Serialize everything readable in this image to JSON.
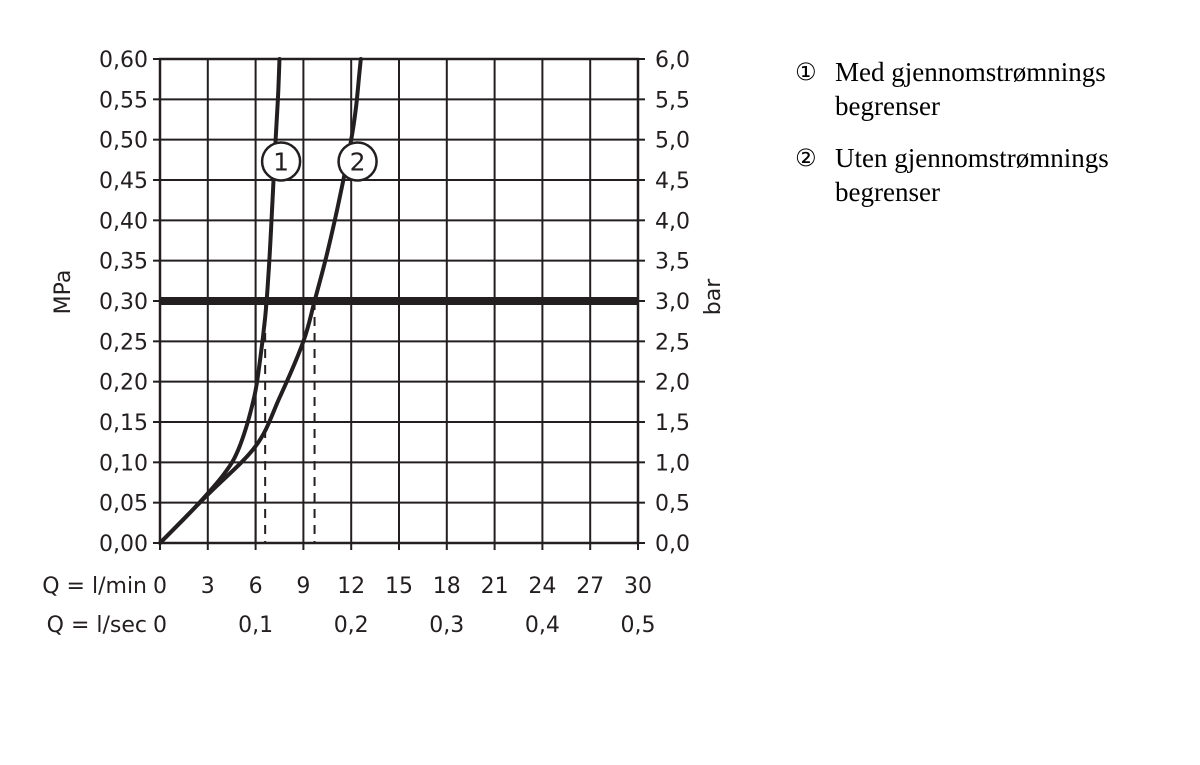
{
  "chart_data": {
    "type": "line",
    "ylabel_left": "MPa",
    "ylabel_right": "bar",
    "x_row1_label": "Q = l/min",
    "x_row2_label": "Q = l/sec",
    "xlim": [
      0,
      30
    ],
    "ylim": [
      0,
      0.6
    ],
    "x_ticks": [
      "0",
      "3",
      "6",
      "9",
      "12",
      "15",
      "18",
      "21",
      "24",
      "27",
      "30"
    ],
    "x_ticks_sec": [
      {
        "q": 0,
        "label": "0"
      },
      {
        "q": 6,
        "label": "0,1"
      },
      {
        "q": 12,
        "label": "0,2"
      },
      {
        "q": 18,
        "label": "0,3"
      },
      {
        "q": 24,
        "label": "0,4"
      },
      {
        "q": 30,
        "label": "0,5"
      }
    ],
    "y_ticks_left": [
      "0,00",
      "0,05",
      "0,10",
      "0,15",
      "0,20",
      "0,25",
      "0,30",
      "0,35",
      "0,40",
      "0,45",
      "0,50",
      "0,55",
      "0,60"
    ],
    "y_ticks_right": [
      "0,0",
      "0,5",
      "1,0",
      "1,5",
      "2,0",
      "2,5",
      "3,0",
      "3,5",
      "4,0",
      "4,5",
      "5,0",
      "5,5",
      "6,0"
    ],
    "grid": true,
    "reference_line": {
      "y": 0.3
    },
    "series": [
      {
        "marker": "1",
        "x": [
          0,
          2,
          4,
          5,
          5.9,
          6.3,
          6.6,
          6.8,
          7.0,
          7.2,
          7.4,
          7.5
        ],
        "y": [
          0,
          0.04,
          0.085,
          0.12,
          0.18,
          0.23,
          0.28,
          0.33,
          0.4,
          0.48,
          0.55,
          0.6
        ]
      },
      {
        "marker": "2",
        "x": [
          0,
          3,
          6,
          7.5,
          9,
          9.7,
          10.5,
          11.3,
          12.0,
          12.3,
          12.5,
          12.6
        ],
        "y": [
          0,
          0.06,
          0.12,
          0.18,
          0.25,
          0.3,
          0.36,
          0.43,
          0.5,
          0.54,
          0.58,
          0.6
        ]
      }
    ],
    "marker_labels": [
      {
        "label": "1",
        "x": 7.6,
        "y": 0.473
      },
      {
        "label": "2",
        "x": 12.4,
        "y": 0.473
      }
    ],
    "dropdowns": [
      {
        "x": 6.0,
        "style": "solid"
      },
      {
        "x": 6.6,
        "style": "dashed"
      },
      {
        "x": 9.7,
        "style": "dashed"
      }
    ]
  },
  "legend": [
    {
      "marker": "①",
      "text": "Med gjennomstrømnings begrenser"
    },
    {
      "marker": "②",
      "text": "Uten gjennomstrømnings begrenser"
    }
  ]
}
